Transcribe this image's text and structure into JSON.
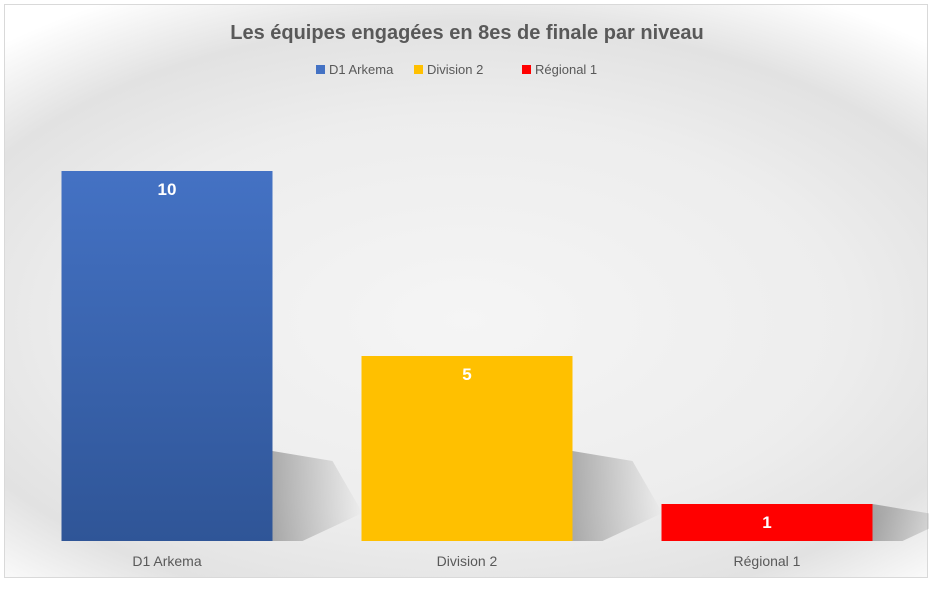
{
  "chart_data": {
    "type": "bar",
    "title": "Les équipes engagées en 8es de finale par niveau",
    "xlabel": "",
    "ylabel": "",
    "ylim": [
      0,
      10
    ],
    "grid": false,
    "legend_position": "top",
    "categories": [
      "D1 Arkema",
      "Division 2",
      "Régional 1"
    ],
    "values": [
      10,
      5,
      1
    ],
    "legend": [
      "D1 Arkema",
      "Division 2",
      "Régional 1"
    ],
    "colors": [
      "#4472c4",
      "#ffc000",
      "#ff0000"
    ],
    "data_labels": [
      "10",
      "5",
      "1"
    ]
  }
}
